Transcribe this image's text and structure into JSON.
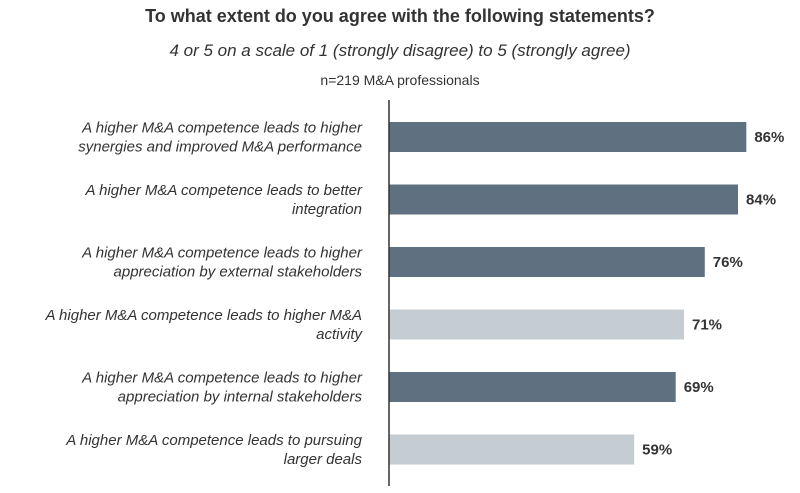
{
  "chart_data": {
    "type": "bar",
    "orientation": "horizontal",
    "title": "To what extent do you agree with the following statements?",
    "subtitle": "4 or 5 on a scale of 1 (strongly disagree) to 5 (strongly agree)",
    "note": "n=219 M&A professionals",
    "categories": [
      [
        "A higher M&A competence leads to higher",
        "synergies and improved M&A performance"
      ],
      [
        "A higher M&A competence leads to better",
        "integration"
      ],
      [
        "A higher M&A competence leads to higher",
        "appreciation by external stakeholders"
      ],
      [
        "A higher M&A competence leads to higher M&A",
        "activity"
      ],
      [
        "A higher M&A competence leads to higher",
        "appreciation by internal stakeholders"
      ],
      [
        "A higher M&A competence leads to pursuing",
        "larger deals"
      ]
    ],
    "values": [
      86,
      84,
      76,
      71,
      69,
      59
    ],
    "value_labels": [
      "86%",
      "84%",
      "76%",
      "71%",
      "69%",
      "59%"
    ],
    "highlight": [
      true,
      true,
      true,
      false,
      true,
      false
    ],
    "unit": "%",
    "xlim": [
      0,
      100
    ],
    "grid": false,
    "colors": {
      "highlight": "#5f7180",
      "muted": "#c5ccd2",
      "axis": "#333333"
    }
  }
}
